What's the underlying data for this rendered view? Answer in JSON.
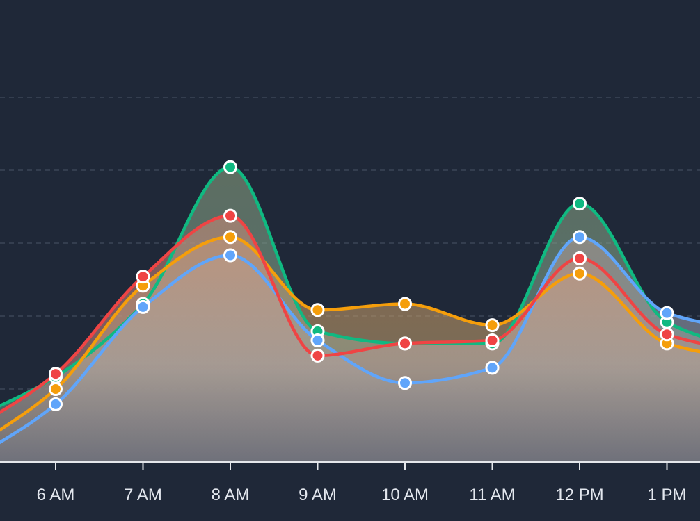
{
  "chart_data": {
    "type": "area",
    "categories": [
      "6 AM",
      "7 AM",
      "8 AM",
      "9 AM",
      "10 AM",
      "11 AM",
      "12 PM",
      "1 PM"
    ],
    "series": [
      {
        "color": "#10b981",
        "values": [
          14.0,
          26.0,
          48.5,
          21.5,
          19.5,
          19.5,
          42.5,
          23.0
        ]
      },
      {
        "color": "#60a5fa",
        "values": [
          9.5,
          25.5,
          34.0,
          20.0,
          13.0,
          15.5,
          37.0,
          24.5
        ]
      },
      {
        "color": "#f59e0b",
        "values": [
          12.0,
          29.0,
          37.0,
          25.0,
          26.0,
          22.5,
          31.0,
          19.5
        ]
      },
      {
        "color": "#ef4444",
        "values": [
          14.5,
          30.5,
          40.5,
          17.5,
          19.5,
          20.0,
          33.5,
          21.0
        ]
      }
    ],
    "ylim": [
      0,
      60
    ],
    "grid": true,
    "area_fill": {
      "top": "#c49a82",
      "bottom": "#6b7280"
    }
  }
}
